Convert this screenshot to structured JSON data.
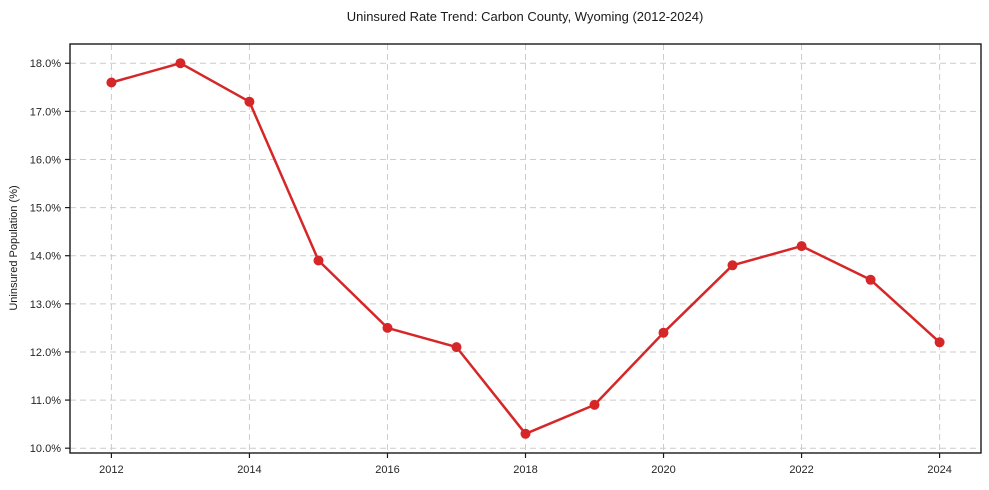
{
  "chart_data": {
    "type": "line",
    "title": "Uninsured Rate Trend: Carbon County, Wyoming (2012-2024)",
    "xlabel": "",
    "ylabel": "Uninsured Population (%)",
    "x": [
      2012,
      2013,
      2014,
      2015,
      2016,
      2017,
      2018,
      2019,
      2020,
      2021,
      2022,
      2023,
      2024
    ],
    "values": [
      17.6,
      18.0,
      17.2,
      13.9,
      12.5,
      12.1,
      10.3,
      10.9,
      12.4,
      13.8,
      14.2,
      13.5,
      12.2
    ],
    "xlim": [
      2011.4,
      2024.6
    ],
    "ylim": [
      9.9,
      18.4
    ],
    "xticks": [
      2012,
      2014,
      2016,
      2018,
      2020,
      2022,
      2024
    ],
    "xtick_labels": [
      "2012",
      "2014",
      "2016",
      "2018",
      "2020",
      "2022",
      "2024"
    ],
    "yticks": [
      10,
      11,
      12,
      13,
      14,
      15,
      16,
      17,
      18
    ],
    "ytick_labels": [
      "10.0%",
      "11.0%",
      "12.0%",
      "13.0%",
      "14.0%",
      "15.0%",
      "16.0%",
      "17.0%",
      "18.0%"
    ],
    "grid": true,
    "grid_style": "dashed",
    "legend_position": "none",
    "line_color": "#d62728",
    "marker": "circle",
    "marker_color": "#d62728",
    "grid_color": "#cccccc",
    "axis_color": "#1a1a1a",
    "background_color": "#ffffff"
  }
}
